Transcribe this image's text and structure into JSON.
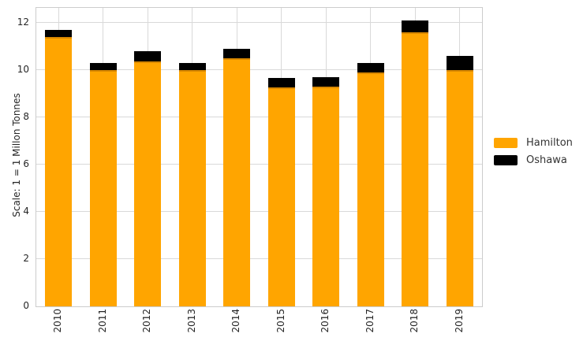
{
  "chart_data": {
    "type": "bar",
    "stacked": true,
    "title": "",
    "xlabel": "",
    "ylabel": "Scale: 1 = 1 Millon Tonnes",
    "categories": [
      "2010",
      "2011",
      "2012",
      "2013",
      "2014",
      "2015",
      "2016",
      "2017",
      "2018",
      "2019"
    ],
    "series": [
      {
        "name": "Hamilton",
        "color": "#FFA500",
        "values": [
          11.4,
          10.0,
          10.35,
          10.0,
          10.5,
          9.25,
          9.3,
          9.9,
          11.6,
          10.0
        ]
      },
      {
        "name": "Oshawa",
        "color": "#000000",
        "values": [
          0.3,
          0.3,
          0.45,
          0.3,
          0.4,
          0.4,
          0.4,
          0.4,
          0.5,
          0.6
        ]
      }
    ],
    "totals": [
      11.7,
      10.3,
      10.8,
      10.3,
      10.9,
      9.65,
      9.7,
      10.3,
      12.1,
      10.6
    ],
    "yticks": [
      0,
      2,
      4,
      6,
      8,
      10,
      12
    ],
    "ylim": [
      0,
      12.63
    ],
    "grid": true,
    "legend_position": "center right"
  },
  "legend": {
    "items": [
      {
        "label": "Hamilton",
        "color": "#FFA500"
      },
      {
        "label": "Oshawa",
        "color": "#000000"
      }
    ]
  },
  "colors": {
    "background": "#FFFFFF",
    "gridline": "#D9D9D9",
    "spine": "#CCCCCC",
    "tick_text": "#262626",
    "hamilton": "#FFA500",
    "hamilton_edge": "#D28200",
    "oshawa": "#000000"
  }
}
